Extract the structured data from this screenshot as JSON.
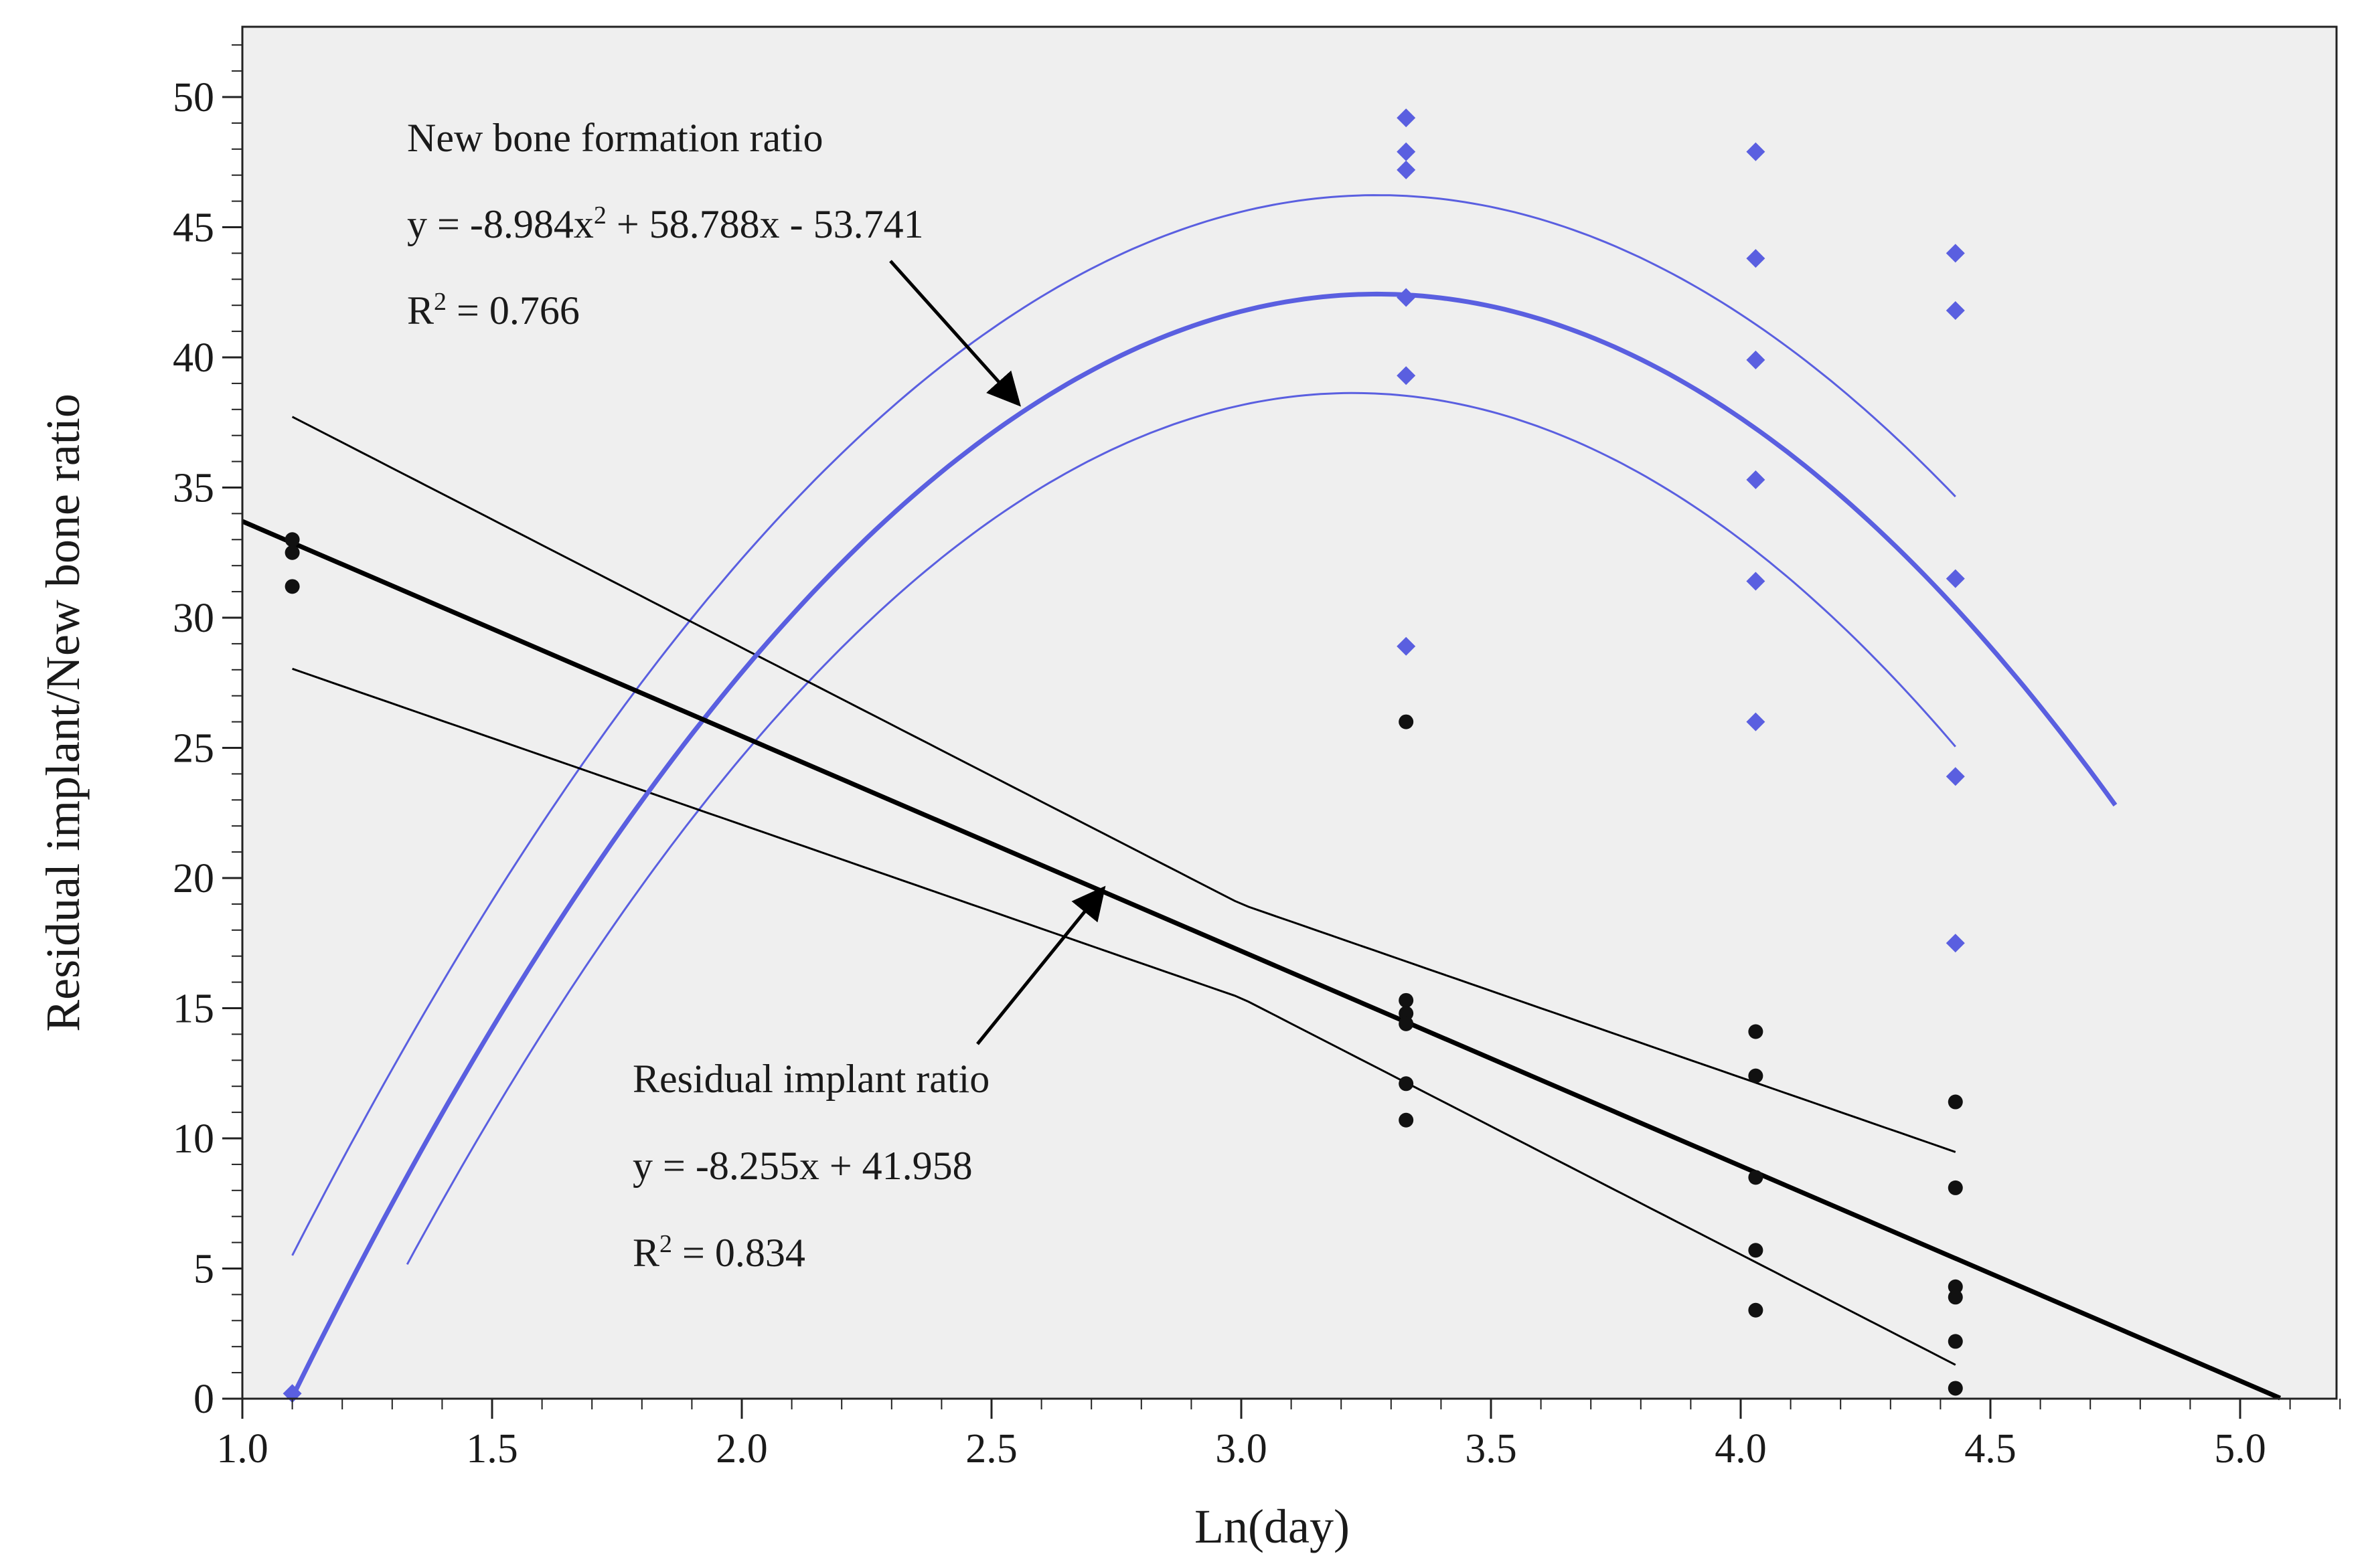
{
  "chart_data": {
    "type": "scatter",
    "title": "",
    "xlabel": "Ln(day)",
    "ylabel": "Residual implant/New bone ratio",
    "xlim": [
      1.0,
      5.2
    ],
    "ylim": [
      0,
      52
    ],
    "x_ticks": [
      "1.0",
      "1.5",
      "2.0",
      "2.5",
      "3.0",
      "3.5",
      "4.0",
      "4.5",
      "5.0"
    ],
    "y_ticks": [
      "0",
      "5",
      "10",
      "15",
      "20",
      "25",
      "30",
      "35",
      "40",
      "45",
      "50"
    ],
    "background": "#efefef",
    "series": [
      {
        "name": "New bone formation ratio",
        "marker": "diamond",
        "color": "#5a5fe0",
        "points": [
          [
            1.1,
            0.2
          ],
          [
            3.33,
            49.2
          ],
          [
            3.33,
            47.9
          ],
          [
            3.33,
            47.2
          ],
          [
            3.33,
            42.3
          ],
          [
            3.33,
            39.3
          ],
          [
            3.33,
            28.9
          ],
          [
            4.03,
            47.9
          ],
          [
            4.03,
            43.8
          ],
          [
            4.03,
            39.9
          ],
          [
            4.03,
            35.3
          ],
          [
            4.03,
            31.4
          ],
          [
            4.03,
            26.0
          ],
          [
            4.43,
            44.0
          ],
          [
            4.43,
            41.8
          ],
          [
            4.43,
            31.5
          ],
          [
            4.43,
            23.9
          ],
          [
            4.43,
            17.5
          ]
        ],
        "fit": {
          "kind": "quadratic",
          "coefficients": [
            -8.984,
            58.788,
            -53.741
          ],
          "x_range": [
            1.1,
            4.75
          ],
          "color": "#5a5fe0"
        },
        "confidence_band": {
          "color": "#5a5fe0",
          "x_range_upper": [
            1.1,
            4.43
          ],
          "x_range_lower": [
            1.33,
            4.43
          ],
          "upper_offset": 3.8,
          "lower_offset": -3.8,
          "lower_shift": 0.05
        },
        "annotation": {
          "label": "New bone formation ratio",
          "equation_prefix": "y = -8.984x",
          "equation_sup": "2",
          "equation_suffix": " + 58.788x - 53.741",
          "r2_prefix": "R",
          "r2_sup": "2",
          "r2_suffix": " = 0.766",
          "arrow_to": [
            2.55,
            38.3
          ]
        }
      },
      {
        "name": "Residual implant ratio",
        "marker": "circle",
        "color": "#111111",
        "points": [
          [
            1.1,
            33.0
          ],
          [
            1.1,
            32.5
          ],
          [
            1.1,
            31.2
          ],
          [
            3.33,
            26.0
          ],
          [
            3.33,
            15.3
          ],
          [
            3.33,
            14.8
          ],
          [
            3.33,
            14.4
          ],
          [
            3.33,
            12.1
          ],
          [
            3.33,
            10.7
          ],
          [
            4.03,
            14.1
          ],
          [
            4.03,
            12.4
          ],
          [
            4.03,
            8.5
          ],
          [
            4.03,
            5.7
          ],
          [
            4.03,
            3.4
          ],
          [
            4.43,
            11.4
          ],
          [
            4.43,
            8.1
          ],
          [
            4.43,
            4.3
          ],
          [
            4.43,
            3.9
          ],
          [
            4.43,
            2.2
          ],
          [
            4.43,
            0.4
          ]
        ],
        "fit": {
          "kind": "linear",
          "coefficients": [
            -8.255,
            41.958
          ],
          "x_range": [
            1.0,
            5.08
          ],
          "color": "#000000"
        },
        "confidence_band": {
          "color": "#000000",
          "x_range": [
            1.1,
            4.43
          ]
        },
        "annotation": {
          "label": "Residual implant ratio",
          "equation": "y = -8.255x + 41.958",
          "r2_prefix": "R",
          "r2_sup": "2",
          "r2_suffix": " = 0.834",
          "arrow_to": [
            2.72,
            19.5
          ]
        }
      }
    ]
  }
}
